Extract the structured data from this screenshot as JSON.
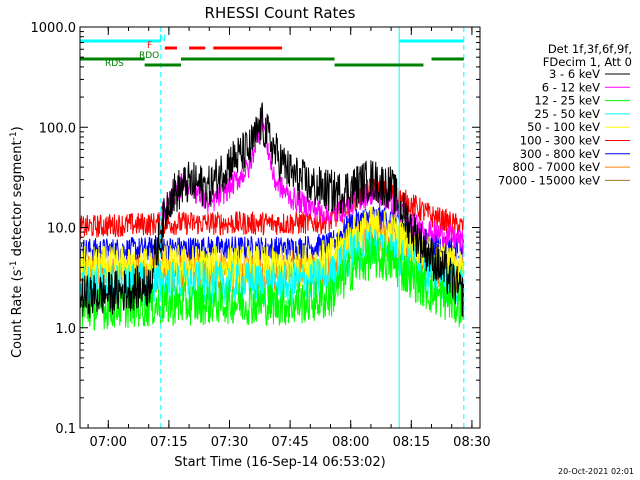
{
  "chart_data": {
    "type": "line",
    "title": "RHESSI Count Rates",
    "xlabel": "Start Time (16-Sep-14 06:53:02)",
    "ylabel_parts": [
      "Count Rate (s",
      "-1",
      " detector segment",
      "-1",
      ")"
    ],
    "yscale": "log",
    "ylim": [
      0.1,
      1000.0
    ],
    "y_ticks": [
      "0.1",
      "1.0",
      "10.0",
      "100.0",
      "1000.0"
    ],
    "x_ticks": [
      "07:00",
      "07:15",
      "07:30",
      "07:45",
      "08:00",
      "08:15",
      "08:30"
    ],
    "x_range_minutes_after_0653": [
      0,
      99
    ],
    "grid": false,
    "legend_position": "right",
    "legend_header": [
      "Det 1f,3f,6f,9f,",
      "FDecim 1, Att 0"
    ],
    "series": [
      {
        "name": "3 - 6 keV",
        "color": "#000000",
        "t": [
          "06:53",
          "07:00",
          "07:10",
          "07:15",
          "07:20",
          "07:25",
          "07:30",
          "07:35",
          "07:38",
          "07:42",
          "07:45",
          "07:50",
          "07:57",
          "08:05",
          "08:10",
          "08:15",
          "08:20",
          "08:25",
          "08:28"
        ],
        "values": [
          2.0,
          2.2,
          2.6,
          20,
          28,
          25,
          45,
          60,
          110,
          50,
          35,
          26,
          22,
          30,
          25,
          10,
          5,
          3,
          2
        ]
      },
      {
        "name": "6 - 12 keV",
        "color": "#ff00ff",
        "t": [
          "07:13",
          "07:15",
          "07:19",
          "07:22",
          "07:25",
          "07:30",
          "07:35",
          "07:38",
          "07:41",
          "07:45",
          "07:50",
          "07:55",
          "08:00",
          "08:05",
          "08:10",
          "08:15",
          "08:20",
          "08:25",
          "08:28"
        ],
        "values": [
          14,
          17,
          30,
          22,
          17,
          25,
          40,
          130,
          30,
          20,
          16,
          13,
          17,
          22,
          18,
          11,
          9,
          8,
          7
        ]
      },
      {
        "name": "12 - 25 keV",
        "color": "#00ff00",
        "t": [
          "06:53",
          "07:00",
          "07:15",
          "07:30",
          "07:45",
          "07:55",
          "08:00",
          "08:05",
          "08:10",
          "08:15",
          "08:20",
          "08:25",
          "08:28"
        ],
        "values": [
          1.5,
          1.6,
          1.7,
          1.8,
          1.7,
          2.0,
          3.8,
          5.0,
          4.5,
          3.2,
          2.2,
          1.8,
          1.6
        ]
      },
      {
        "name": "25 - 50 keV",
        "color": "#00ffff",
        "t": [
          "06:53",
          "07:00",
          "07:15",
          "07:30",
          "07:45",
          "07:55",
          "08:00",
          "08:05",
          "08:10",
          "08:15",
          "08:20",
          "08:25",
          "08:28"
        ],
        "values": [
          2.6,
          2.7,
          2.8,
          2.8,
          2.7,
          3.2,
          5.5,
          6.5,
          6.0,
          4.5,
          3.3,
          2.8,
          2.6
        ]
      },
      {
        "name": "50 - 100 keV",
        "color": "#ffff00",
        "t": [
          "06:53",
          "07:00",
          "07:15",
          "07:30",
          "07:45",
          "07:55",
          "08:00",
          "08:05",
          "08:10",
          "08:15",
          "08:20",
          "08:25",
          "08:28"
        ],
        "values": [
          4.0,
          4.0,
          4.1,
          4.1,
          4.0,
          4.8,
          8.0,
          10,
          9.0,
          6.5,
          4.8,
          4.2,
          4.0
        ]
      },
      {
        "name": "100 - 300 keV",
        "color": "#ff0000",
        "t": [
          "06:53",
          "07:00",
          "07:15",
          "07:30",
          "07:45",
          "07:55",
          "08:00",
          "08:05",
          "08:10",
          "08:15",
          "08:20",
          "08:25",
          "08:28"
        ],
        "values": [
          10,
          10.5,
          11,
          11,
          11,
          11.5,
          18,
          24,
          22,
          17,
          13,
          11,
          10
        ]
      },
      {
        "name": "300 - 800 keV",
        "color": "#0000ff",
        "t": [
          "06:53",
          "07:00",
          "07:15",
          "07:30",
          "07:45",
          "07:55",
          "08:00",
          "08:05",
          "08:10",
          "08:15",
          "08:20",
          "08:25",
          "08:28"
        ],
        "values": [
          6.0,
          6.0,
          6.2,
          6.3,
          6.2,
          6.8,
          11,
          13,
          12,
          9,
          7,
          6.4,
          6.0
        ]
      },
      {
        "name": "800 - 7000 keV",
        "color": "#ff8000",
        "t": [
          "06:53",
          "07:00",
          "07:15",
          "07:30",
          "07:45",
          "07:55",
          "08:00",
          "08:05",
          "08:10",
          "08:15",
          "08:20",
          "08:25",
          "08:28"
        ],
        "values": [
          3.5,
          3.6,
          3.7,
          3.7,
          3.6,
          4.2,
          7.0,
          8.5,
          7.8,
          5.8,
          4.3,
          3.8,
          3.5
        ]
      },
      {
        "name": "7000 - 15000 keV",
        "color": "#a0781e",
        "t": [],
        "values": []
      }
    ],
    "flag_labels": [
      {
        "text": "N",
        "color": "#00ffff"
      },
      {
        "text": "F",
        "color": "#ff0000"
      },
      {
        "text": "RDO",
        "color": "#008000"
      },
      {
        "text": "RDS",
        "color": "#008000"
      }
    ],
    "flag_bars": {
      "N": {
        "color": "#00ffff",
        "spans": [
          [
            "06:53",
            "07:13"
          ],
          [
            "08:12",
            "08:28"
          ]
        ]
      },
      "F": {
        "color": "#ff0000",
        "spans": [
          [
            "07:14",
            "07:17"
          ],
          [
            "07:20",
            "07:24"
          ],
          [
            "07:26",
            "07:43"
          ]
        ]
      },
      "RDO": {
        "color": "#008000",
        "spans": [
          [
            "06:53",
            "07:09"
          ],
          [
            "07:18",
            "07:56"
          ],
          [
            "08:20",
            "08:28"
          ]
        ]
      },
      "RDS": {
        "color": "#008000",
        "spans": [
          [
            "07:09",
            "07:18"
          ],
          [
            "07:56",
            "08:18"
          ]
        ]
      }
    },
    "vertical_lines": [
      {
        "t": "06:53",
        "style": "solid",
        "color": "#00ffff"
      },
      {
        "t": "07:13",
        "style": "dashed",
        "color": "#00ffff"
      },
      {
        "t": "08:12",
        "style": "solid",
        "color": "#00ffff"
      },
      {
        "t": "08:28",
        "style": "dashed",
        "color": "#00ffff"
      }
    ]
  },
  "footer": {
    "timestamp": "20-Oct-2021 02:01"
  }
}
